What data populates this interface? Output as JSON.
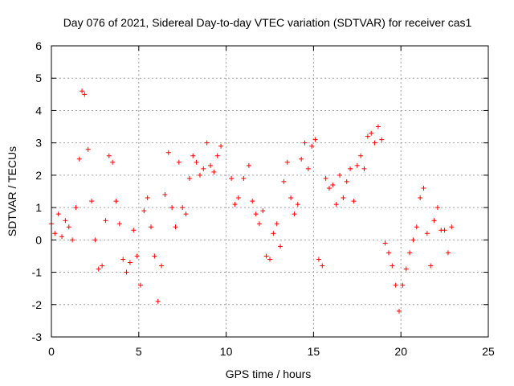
{
  "chart_data": {
    "type": "scatter",
    "title": "Day 076 of 2021, Sidereal Day-to-day VTEC variation (SDTVAR) for receiver cas1",
    "xlabel": "GPS time / hours",
    "ylabel": "SDTVAR / TECUs",
    "xlim": [
      0,
      25
    ],
    "ylim": [
      -3,
      6
    ],
    "x_ticks": [
      "0",
      "5",
      "10",
      "15",
      "20",
      "25"
    ],
    "y_ticks": [
      "-3",
      "-2",
      "-1",
      "0",
      "1",
      "2",
      "3",
      "4",
      "5",
      "6"
    ],
    "grid": true,
    "marker": "+",
    "marker_color": "#ff0000",
    "series": [
      {
        "name": "SDTVAR",
        "x": [
          0.0,
          0.2,
          0.4,
          0.6,
          0.8,
          1.0,
          1.2,
          1.4,
          1.6,
          1.75,
          1.9,
          2.1,
          2.3,
          2.5,
          2.7,
          2.9,
          3.1,
          3.3,
          3.5,
          3.7,
          3.9,
          4.1,
          4.3,
          4.5,
          4.7,
          4.9,
          5.1,
          5.3,
          5.5,
          5.7,
          5.9,
          6.1,
          6.3,
          6.5,
          6.7,
          6.9,
          7.1,
          7.3,
          7.5,
          7.7,
          7.9,
          8.1,
          8.3,
          8.5,
          8.7,
          8.9,
          9.1,
          9.3,
          9.5,
          9.7,
          10.3,
          10.5,
          10.7,
          11.0,
          11.3,
          11.5,
          11.7,
          11.9,
          12.1,
          12.3,
          12.5,
          12.7,
          12.9,
          13.1,
          13.3,
          13.5,
          13.7,
          13.9,
          14.1,
          14.3,
          14.5,
          14.7,
          14.9,
          15.1,
          15.3,
          15.5,
          15.7,
          15.9,
          16.1,
          16.3,
          16.5,
          16.7,
          16.9,
          17.1,
          17.3,
          17.5,
          17.7,
          17.9,
          18.1,
          18.3,
          18.5,
          18.7,
          18.9,
          19.1,
          19.3,
          19.5,
          19.7,
          19.9,
          20.1,
          20.3,
          20.5,
          20.7,
          20.9,
          21.1,
          21.3,
          21.5,
          21.7,
          21.9,
          22.1,
          22.3,
          22.5,
          22.7,
          22.9
        ],
        "y": [
          0.5,
          0.2,
          0.8,
          0.1,
          0.6,
          0.4,
          0.0,
          1.0,
          2.5,
          4.6,
          4.5,
          2.8,
          1.2,
          0.0,
          -0.9,
          -0.8,
          0.6,
          2.6,
          2.4,
          1.2,
          0.5,
          -0.6,
          -1.0,
          -0.7,
          0.3,
          -0.5,
          -1.4,
          0.9,
          1.3,
          0.4,
          -0.5,
          -1.9,
          -0.8,
          1.4,
          2.7,
          1.0,
          0.4,
          2.4,
          1.0,
          0.8,
          1.9,
          2.6,
          2.4,
          2.0,
          2.2,
          3.0,
          2.3,
          2.1,
          2.6,
          2.9,
          1.9,
          1.1,
          1.3,
          1.9,
          2.3,
          1.2,
          0.8,
          0.5,
          0.9,
          -0.5,
          -0.6,
          0.2,
          0.5,
          -0.2,
          1.8,
          2.4,
          1.3,
          0.8,
          1.1,
          2.5,
          3.0,
          2.2,
          2.9,
          3.1,
          -0.6,
          -0.8,
          1.9,
          1.6,
          1.7,
          1.1,
          2.0,
          1.3,
          1.8,
          2.2,
          1.2,
          2.3,
          2.6,
          2.2,
          3.2,
          3.3,
          3.0,
          3.5,
          3.1,
          -0.1,
          -0.4,
          -0.8,
          -1.4,
          -2.2,
          -1.4,
          -0.9,
          -0.4,
          0.0,
          0.4,
          1.3,
          1.6,
          0.2,
          -0.8,
          0.6,
          1.0,
          0.3,
          0.3,
          -0.4,
          0.4
        ]
      }
    ]
  }
}
